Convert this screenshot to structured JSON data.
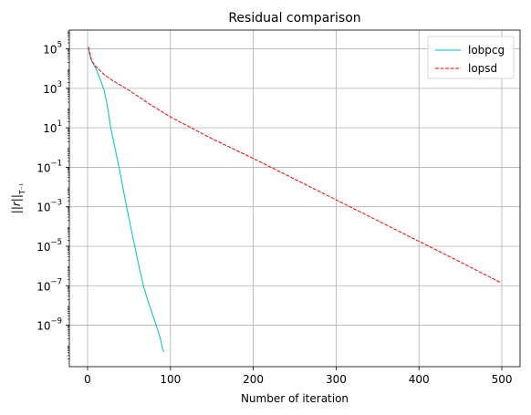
{
  "chart_data": {
    "type": "line",
    "title": "Residual comparison",
    "xlabel": "Number of iteration",
    "ylabel": "||r||",
    "ylabel_sub": "T⁻¹",
    "yscale": "log",
    "xlim": [
      -22,
      522
    ],
    "ylim_exp": [
      -11.1,
      5.95
    ],
    "xticks": [
      0,
      100,
      200,
      300,
      400,
      500
    ],
    "yticks_exp": [
      -9,
      -7,
      -5,
      -3,
      -1,
      1,
      3,
      5
    ],
    "grid": true,
    "legend": "top-right",
    "series": [
      {
        "name": "lobpcg",
        "color": "#00bfbf",
        "style": "solid",
        "x": [
          1,
          2,
          4,
          6,
          10,
          15,
          20,
          23,
          25,
          28,
          33,
          38,
          43,
          48,
          53,
          58,
          63,
          68,
          73,
          78,
          83,
          88,
          90,
          92
        ],
        "y_exp": [
          5.1,
          4.8,
          4.5,
          4.3,
          4.0,
          3.5,
          2.9,
          2.3,
          1.8,
          1.0,
          0.0,
          -1.0,
          -2.1,
          -3.2,
          -4.2,
          -5.2,
          -6.2,
          -7.1,
          -7.8,
          -8.4,
          -9.0,
          -9.7,
          -10.1,
          -10.35
        ]
      },
      {
        "name": "lopsd",
        "color": "#ff0000",
        "style": "dashed",
        "x": [
          1,
          5,
          10,
          20,
          30,
          50,
          75,
          100,
          150,
          200,
          250,
          300,
          350,
          400,
          450,
          499
        ],
        "y_exp": [
          5.1,
          4.4,
          4.1,
          3.7,
          3.4,
          2.9,
          2.2,
          1.55,
          0.45,
          -0.55,
          -1.6,
          -2.65,
          -3.7,
          -4.75,
          -5.8,
          -6.85
        ]
      }
    ]
  }
}
